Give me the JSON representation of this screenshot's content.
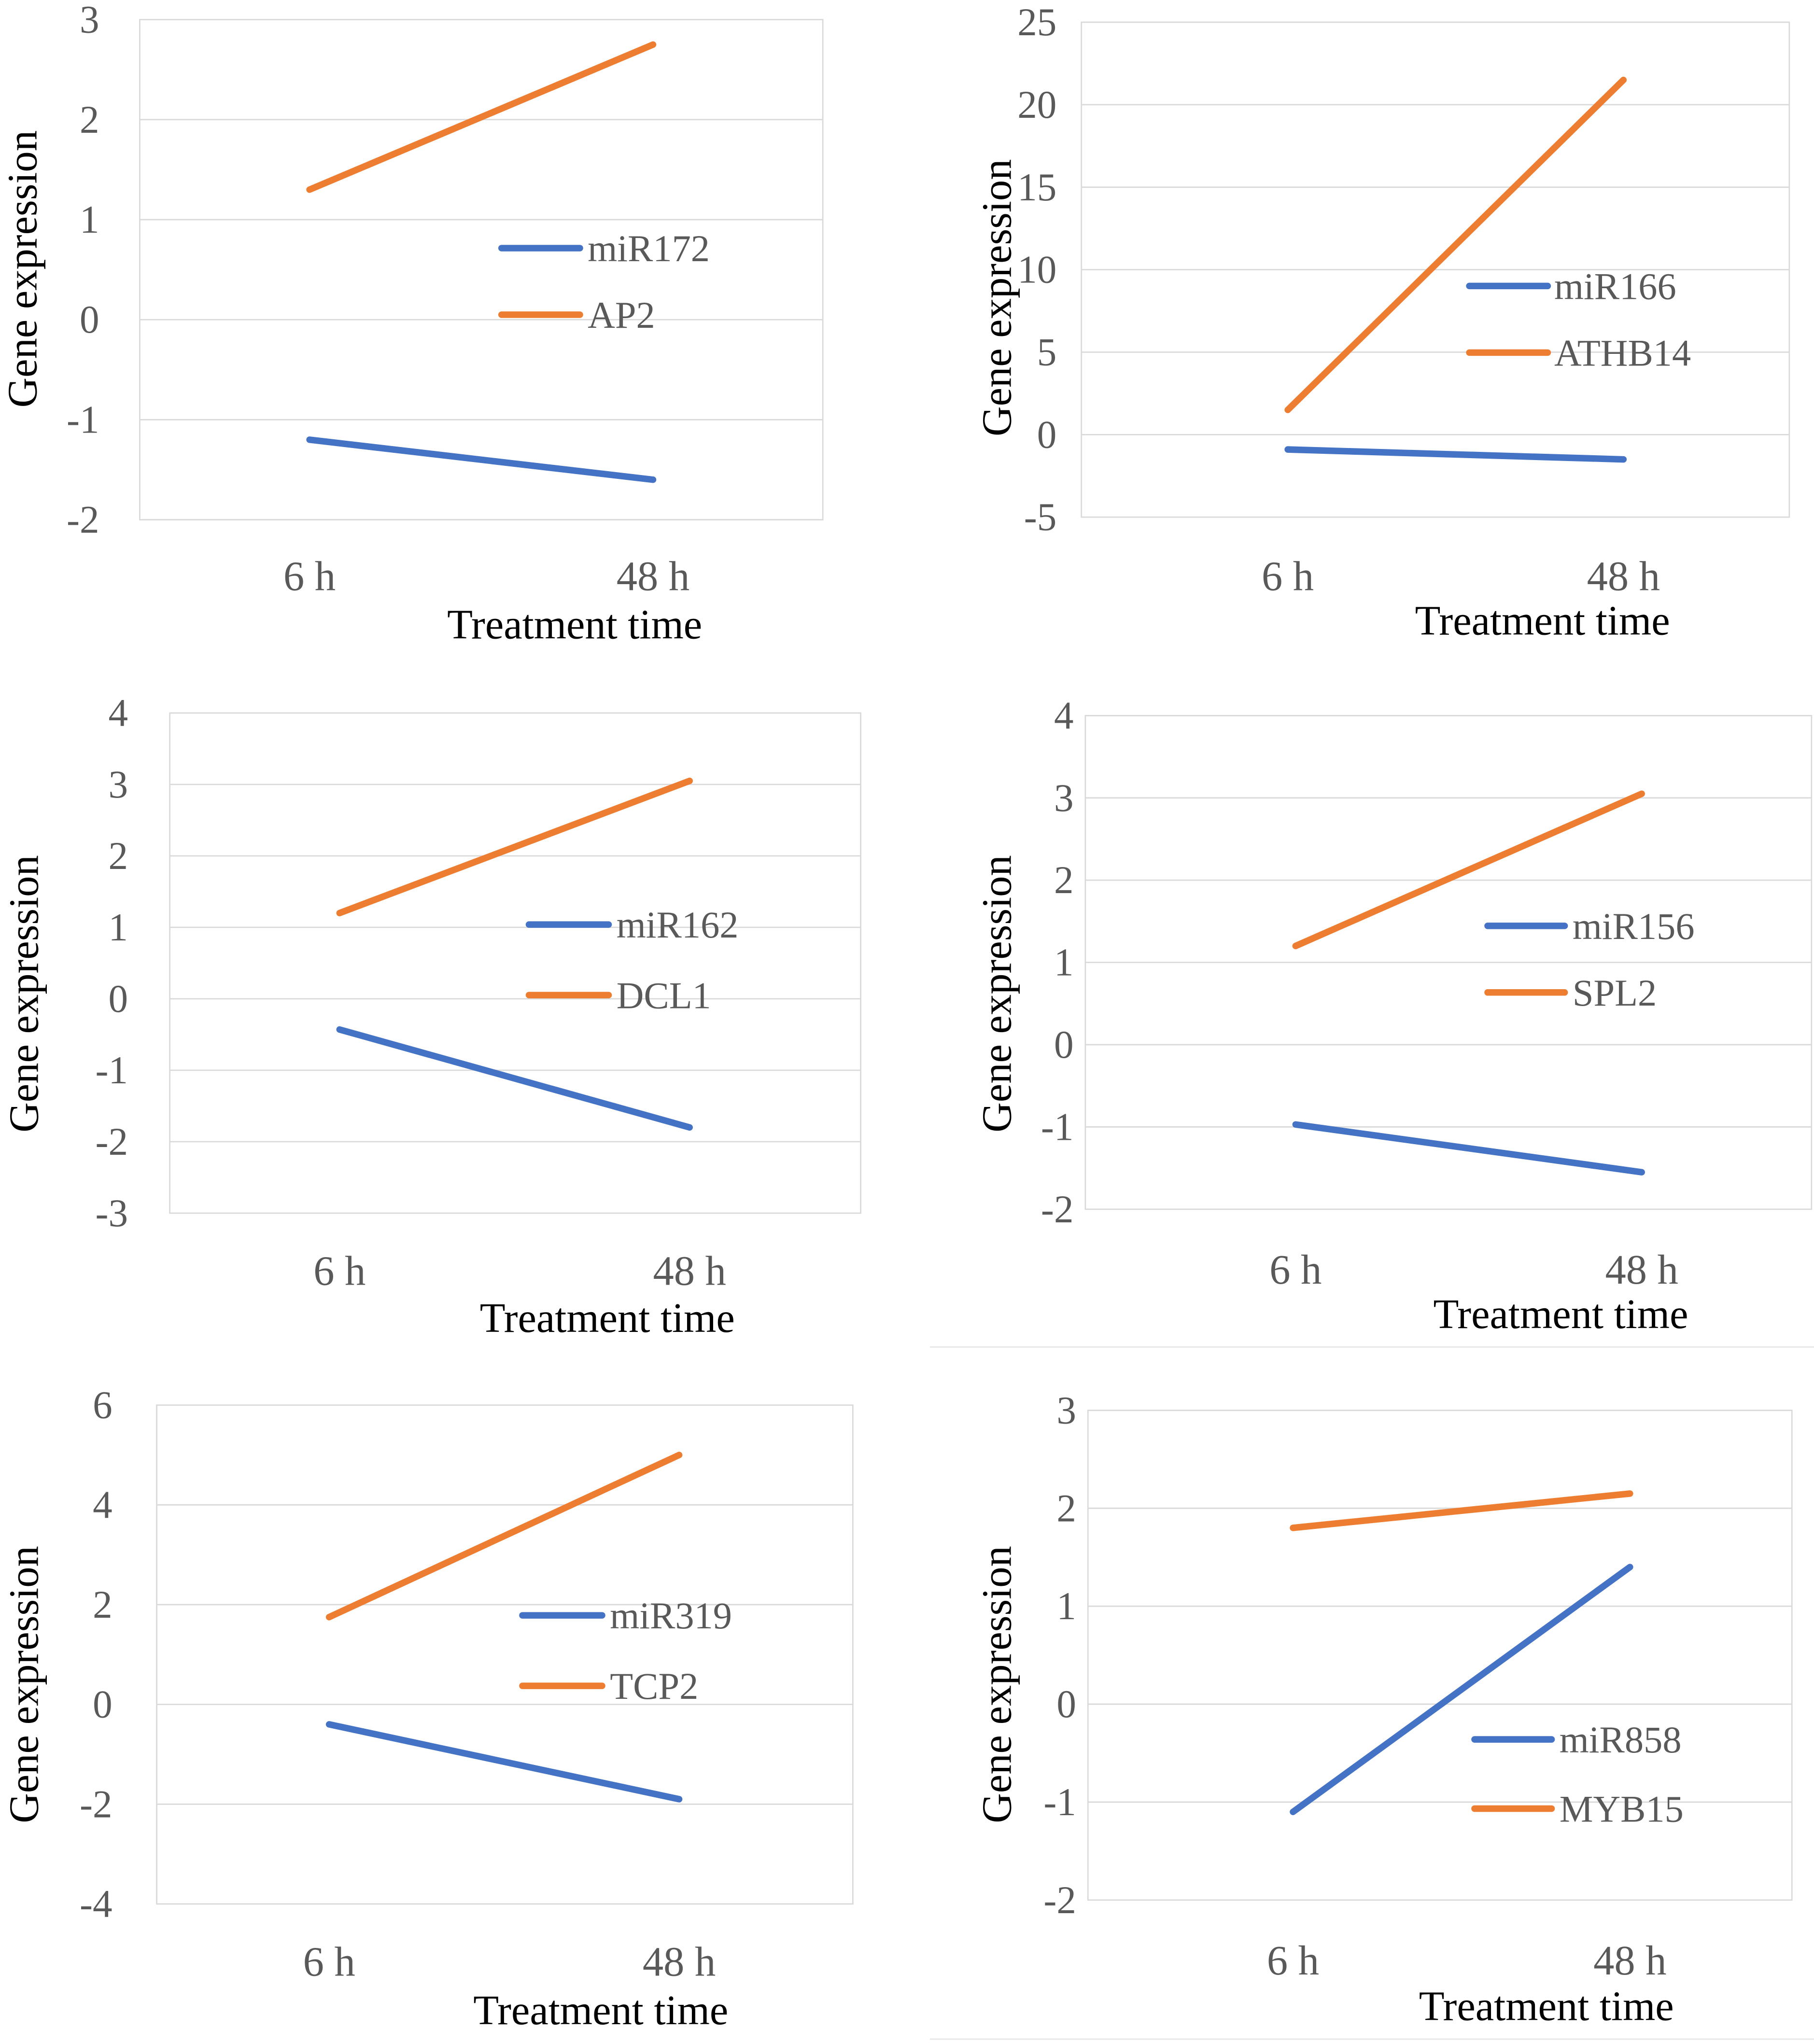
{
  "chart_data": [
    {
      "type": "line",
      "categories": [
        "6 h",
        "48 h"
      ],
      "series": [
        {
          "name": "miR172",
          "values": [
            -1.2,
            -1.6
          ],
          "color": "#4472c4"
        },
        {
          "name": "AP2",
          "values": [
            1.3,
            2.75
          ],
          "color": "#ed7d31"
        }
      ],
      "xlabel": "Treatment time",
      "ylabel": "Gene expression",
      "ylim": [
        -2,
        3
      ],
      "yticks": [
        "3",
        "2",
        "1",
        "0",
        "-1",
        "-2"
      ],
      "grid": true,
      "legend": "center-right"
    },
    {
      "type": "line",
      "categories": [
        "6 h",
        "48 h"
      ],
      "series": [
        {
          "name": "miR166",
          "values": [
            -0.9,
            -1.5
          ],
          "color": "#4472c4"
        },
        {
          "name": "ATHB14",
          "values": [
            1.5,
            21.5
          ],
          "color": "#ed7d31"
        }
      ],
      "xlabel": "Treatment time",
      "ylabel": "Gene expression",
      "ylim": [
        -5,
        25
      ],
      "yticks": [
        "25",
        "20",
        "15",
        "10",
        "5",
        "0",
        "-5"
      ],
      "grid": true,
      "legend": "center-right"
    },
    {
      "type": "line",
      "categories": [
        "6 h",
        "48 h"
      ],
      "series": [
        {
          "name": "miR162",
          "values": [
            -0.43,
            -1.8
          ],
          "color": "#4472c4"
        },
        {
          "name": "DCL1",
          "values": [
            1.2,
            3.05
          ],
          "color": "#ed7d31"
        }
      ],
      "xlabel": "Treatment time",
      "ylabel": "Gene expression",
      "ylim": [
        -3,
        4
      ],
      "yticks": [
        "4",
        "3",
        "2",
        "1",
        "0",
        "-1",
        "-2",
        "-3"
      ],
      "grid": true,
      "legend": "center-right"
    },
    {
      "type": "line",
      "categories": [
        "6 h",
        "48 h"
      ],
      "series": [
        {
          "name": "miR156",
          "values": [
            -0.97,
            -1.55
          ],
          "color": "#4472c4"
        },
        {
          "name": "SPL2",
          "values": [
            1.2,
            3.05
          ],
          "color": "#ed7d31"
        }
      ],
      "xlabel": "Treatment time",
      "ylabel": "Gene expression",
      "ylim": [
        -2,
        4
      ],
      "yticks": [
        "4",
        "3",
        "2",
        "1",
        "0",
        "-1",
        "-2"
      ],
      "grid": true,
      "legend": "center-right"
    },
    {
      "type": "line",
      "categories": [
        "6 h",
        "48 h"
      ],
      "series": [
        {
          "name": "miR319",
          "values": [
            -0.4,
            -1.9
          ],
          "color": "#4472c4"
        },
        {
          "name": "TCP2",
          "values": [
            1.75,
            5.0
          ],
          "color": "#ed7d31"
        }
      ],
      "xlabel": "Treatment time",
      "ylabel": "Gene expression",
      "ylim": [
        -4,
        6
      ],
      "yticks": [
        "6",
        "4",
        "2",
        "0",
        "-2",
        "-4"
      ],
      "grid": true,
      "legend": "center-right"
    },
    {
      "type": "line",
      "categories": [
        "6 h",
        "48 h"
      ],
      "series": [
        {
          "name": "miR858",
          "values": [
            -1.1,
            1.4
          ],
          "color": "#4472c4"
        },
        {
          "name": "MYB15",
          "values": [
            1.8,
            2.15
          ],
          "color": "#ed7d31"
        }
      ],
      "xlabel": "Treatment time",
      "ylabel": "Gene expression",
      "ylim": [
        -2,
        3
      ],
      "yticks": [
        "3",
        "2",
        "1",
        "0",
        "-1",
        "-2"
      ],
      "grid": true,
      "legend": "lower-right"
    }
  ]
}
